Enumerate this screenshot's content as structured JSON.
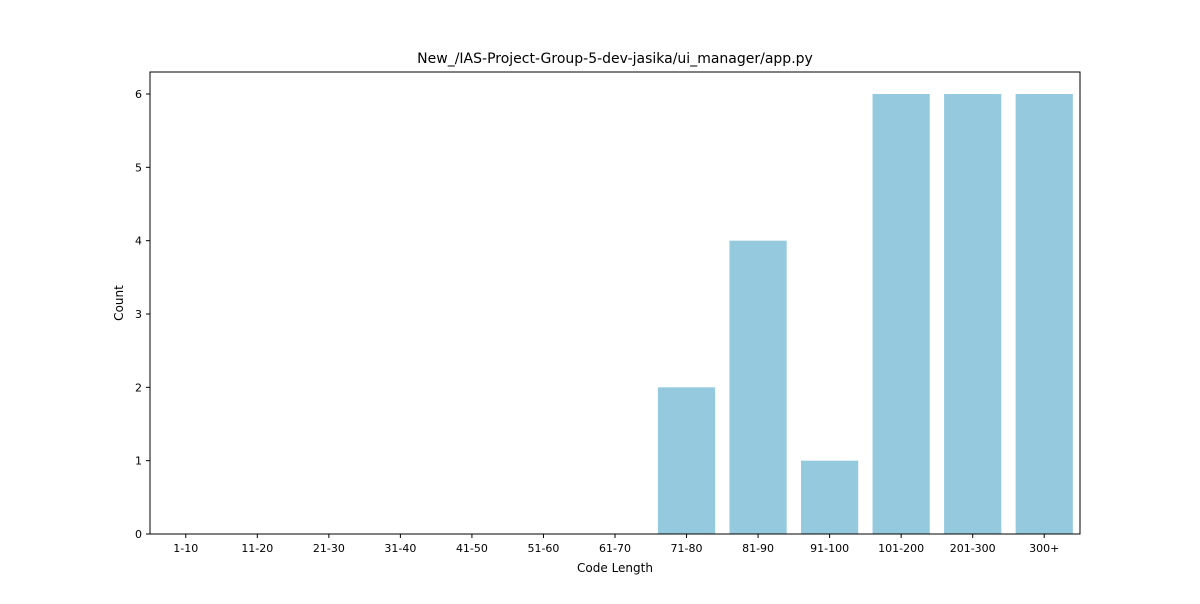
{
  "chart_data": {
    "type": "bar",
    "title": "New_/IAS-Project-Group-5-dev-jasika/ui_manager/app.py",
    "xlabel": "Code Length",
    "ylabel": "Count",
    "categories": [
      "1-10",
      "11-20",
      "21-30",
      "31-40",
      "41-50",
      "51-60",
      "61-70",
      "71-80",
      "81-90",
      "91-100",
      "101-200",
      "201-300",
      "300+"
    ],
    "values": [
      0,
      0,
      0,
      0,
      0,
      0,
      0,
      2,
      4,
      1,
      6,
      6,
      6
    ],
    "ylim": [
      0,
      6.3
    ],
    "yticks": [
      0,
      1,
      2,
      3,
      4,
      5,
      6
    ],
    "bar_color": "#95c9de",
    "grid": false,
    "legend": "none"
  }
}
